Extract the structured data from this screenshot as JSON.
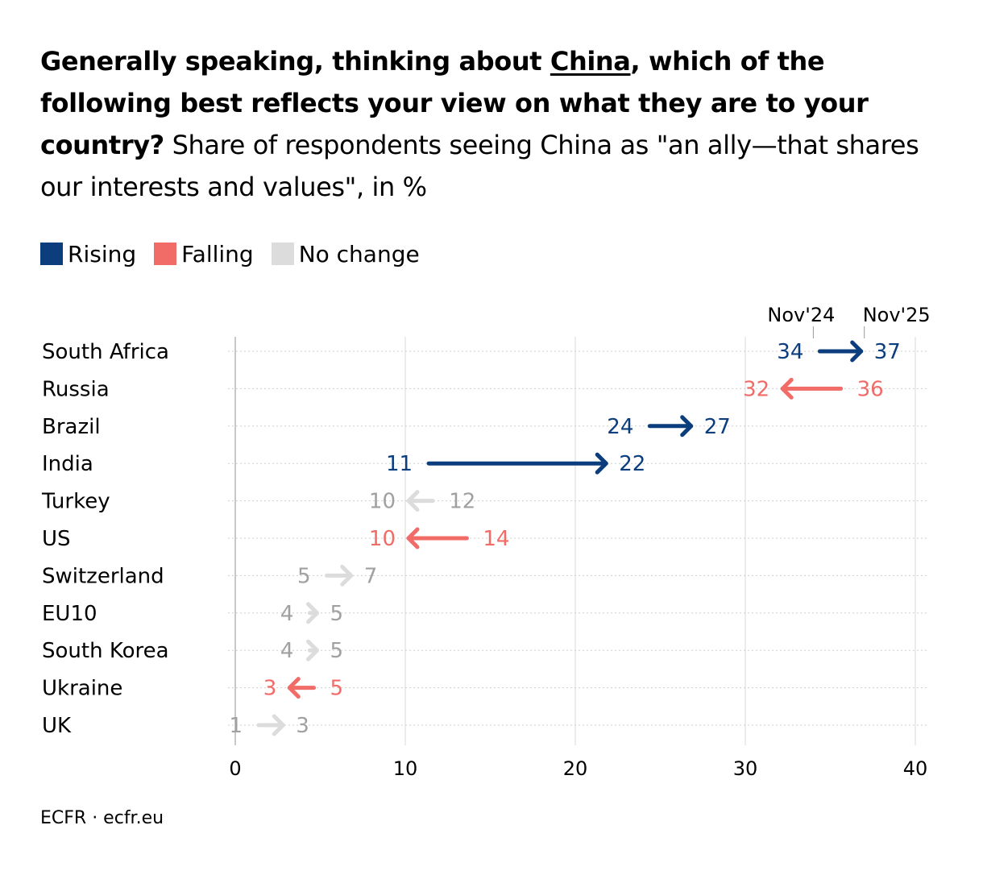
{
  "title": {
    "part1": "Generally speaking, thinking about ",
    "underlined": "China",
    "part2": ", which of the following best reflects your view on what they are to your country?",
    "subtitle": " Share of respondents seeing China as \"an ally—that shares our interests and values\", in %"
  },
  "legend": [
    {
      "label": "Rising",
      "color": "#0c3d7d"
    },
    {
      "label": "Falling",
      "color": "#f16b67"
    },
    {
      "label": "No change",
      "color": "#dcdcdc"
    }
  ],
  "chart_data": {
    "type": "arrow",
    "title": "Generally speaking, thinking about China, which of the following best reflects your view on what they are to your country?",
    "series_labels": {
      "start": "Nov'24",
      "end": "Nov'25"
    },
    "xlim": [
      0,
      40
    ],
    "xticks": [
      0,
      10,
      20,
      30,
      40
    ],
    "rows": [
      {
        "country": "South Africa",
        "from": 34,
        "to": 37,
        "status": "rising"
      },
      {
        "country": "Russia",
        "from": 36,
        "to": 32,
        "status": "falling"
      },
      {
        "country": "Brazil",
        "from": 24,
        "to": 27,
        "status": "rising"
      },
      {
        "country": "India",
        "from": 11,
        "to": 22,
        "status": "rising"
      },
      {
        "country": "Turkey",
        "from": 12,
        "to": 10,
        "status": "nochange"
      },
      {
        "country": "US",
        "from": 14,
        "to": 10,
        "status": "falling"
      },
      {
        "country": "Switzerland",
        "from": 5,
        "to": 7,
        "status": "nochange"
      },
      {
        "country": "EU10",
        "from": 4,
        "to": 5,
        "status": "nochange"
      },
      {
        "country": "South Korea",
        "from": 4,
        "to": 5,
        "status": "nochange"
      },
      {
        "country": "Ukraine",
        "from": 5,
        "to": 3,
        "status": "falling"
      },
      {
        "country": "UK",
        "from": 1,
        "to": 3,
        "status": "nochange"
      }
    ]
  },
  "colors": {
    "rising": "#0c3d7d",
    "falling": "#f16b67",
    "nochange_line": "#dcdcdc",
    "nochange_text": "#a0a0a0",
    "grid": "#d9d9d9"
  },
  "source": "ECFR · ecfr.eu"
}
